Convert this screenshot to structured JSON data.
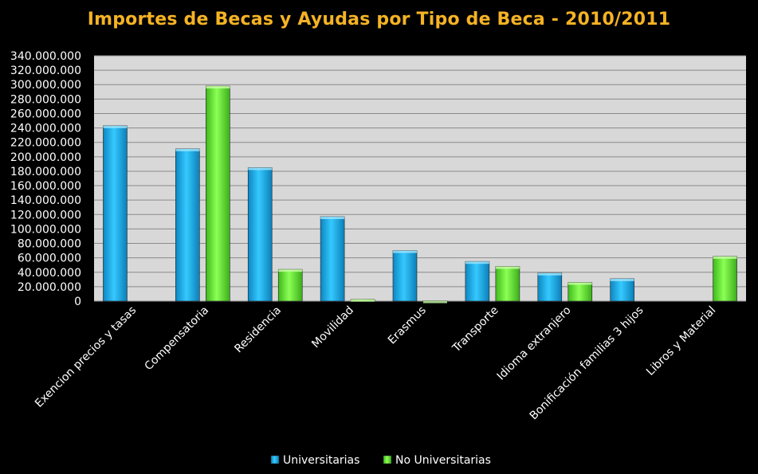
{
  "chart_data": {
    "type": "bar",
    "title": "Importes de Becas y Ayudas por Tipo de Beca - 2010/2011",
    "xlabel": "",
    "ylabel": "",
    "ylim": [
      0,
      340000000
    ],
    "yticks": [
      "0",
      "20.000.000",
      "40.000.000",
      "60.000.000",
      "80.000.000",
      "100.000.000",
      "120.000.000",
      "140.000.000",
      "160.000.000",
      "180.000.000",
      "200.000.000",
      "220.000.000",
      "240.000.000",
      "260.000.000",
      "280.000.000",
      "300.000.000",
      "320.000.000",
      "340.000.000"
    ],
    "categories": [
      "Exencion precios y tasas",
      "Compensatoria",
      "Residencia",
      "Movilidad",
      "Erasmus",
      "Transporte",
      "Idioma extranjero",
      "Bonificación familias 3 hijos",
      "Libros y Material"
    ],
    "series": [
      {
        "name": "Universitarias",
        "color": "#1EB8F0",
        "values": [
          243000000,
          211000000,
          185000000,
          117000000,
          70000000,
          55000000,
          39000000,
          31000000,
          0
        ]
      },
      {
        "name": "No Universitarias",
        "color": "#6EEF3A",
        "values": [
          0,
          298000000,
          44000000,
          2500000,
          500000,
          48000000,
          26000000,
          0,
          62000000
        ]
      }
    ],
    "grid": true,
    "legend_position": "bottom-center",
    "plot_background": "#D8D8D8",
    "background": "#000000"
  }
}
